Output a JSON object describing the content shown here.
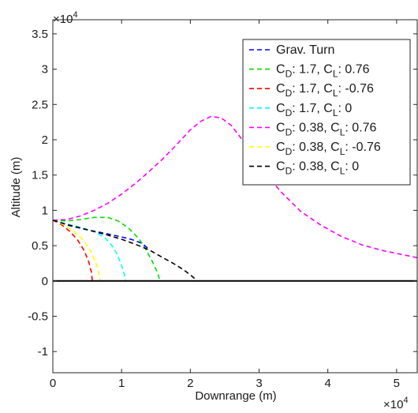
{
  "chart_data": {
    "type": "line",
    "xlabel": "Downrange (m)",
    "ylabel": "Altitude (m)",
    "x_scale_label": "×10",
    "x_scale_exp": "4",
    "y_scale_label": "×10",
    "y_scale_exp": "4",
    "xlim": [
      0,
      53000
    ],
    "ylim": [
      -13000,
      37000
    ],
    "x_ticks": [
      {
        "value": 0,
        "label": "0"
      },
      {
        "value": 10000,
        "label": "1"
      },
      {
        "value": 20000,
        "label": "2"
      },
      {
        "value": 30000,
        "label": "3"
      },
      {
        "value": 40000,
        "label": "4"
      },
      {
        "value": 50000,
        "label": "5"
      }
    ],
    "y_ticks": [
      {
        "value": -10000,
        "label": "-1"
      },
      {
        "value": -5000,
        "label": "-0.5"
      },
      {
        "value": 0,
        "label": "0"
      },
      {
        "value": 5000,
        "label": "0.5"
      },
      {
        "value": 10000,
        "label": "1"
      },
      {
        "value": 15000,
        "label": "1.5"
      },
      {
        "value": 20000,
        "label": "2"
      },
      {
        "value": 25000,
        "label": "2.5"
      },
      {
        "value": 30000,
        "label": "3"
      },
      {
        "value": 35000,
        "label": "3.5"
      }
    ],
    "grid": false,
    "legend_position": "top-right",
    "zero_line": true,
    "series": [
      {
        "name": "Grav. Turn",
        "legend": {
          "pre": "Grav. Turn",
          "sub1": "",
          "mid": "",
          "sub2": "",
          "post": ""
        },
        "color": "#0000ff",
        "x": [
          0,
          1000,
          2000,
          3000,
          5000,
          7000,
          9000,
          11000,
          12000,
          13000,
          14000
        ],
        "y": [
          8600,
          8300,
          7950,
          7700,
          7250,
          6850,
          6450,
          6000,
          5700,
          5300,
          4500
        ]
      },
      {
        "name": "CD: 1.7, CL: 0.76",
        "legend": {
          "pre": "C",
          "sub1": "D",
          "mid": ": 1.7, C",
          "sub2": "L",
          "post": ": 0.76"
        },
        "color": "#00dd00",
        "x": [
          0,
          2000,
          4000,
          6000,
          8000,
          9500,
          11000,
          12500,
          13500,
          14500,
          15200,
          15600
        ],
        "y": [
          8600,
          8500,
          8700,
          9000,
          9000,
          8500,
          7500,
          6000,
          4500,
          2700,
          1200,
          0
        ]
      },
      {
        "name": "CD: 1.7, CL: -0.76",
        "legend": {
          "pre": "C",
          "sub1": "D",
          "mid": ": 1.7, C",
          "sub2": "L",
          "post": ": -0.76"
        },
        "color": "#ff0000",
        "x": [
          0,
          1200,
          2500,
          3600,
          4500,
          5200,
          5600,
          5750
        ],
        "y": [
          8600,
          8000,
          7000,
          5800,
          4400,
          2800,
          1300,
          0
        ]
      },
      {
        "name": "CD: 1.7, CL: 0",
        "legend": {
          "pre": "C",
          "sub1": "D",
          "mid": ": 1.7, C",
          "sub2": "L",
          "post": ": 0"
        },
        "color": "#00ffff",
        "x": [
          0,
          2000,
          4000,
          6000,
          7500,
          8600,
          9400,
          10000,
          10400,
          10600
        ],
        "y": [
          8600,
          8100,
          7600,
          7000,
          6200,
          5000,
          3700,
          2200,
          900,
          0
        ]
      },
      {
        "name": "CD: 0.38, CL: 0.76",
        "legend": {
          "pre": "C",
          "sub1": "D",
          "mid": ": 0.38, C",
          "sub2": "L",
          "post": ": 0.76"
        },
        "color": "#ff00ff",
        "x": [
          0,
          2000,
          4000,
          6000,
          8000,
          10000,
          12000,
          14000,
          16000,
          18000,
          20000,
          21500,
          23000,
          24500,
          26000,
          28000,
          30000,
          33000,
          36000,
          39000,
          42000,
          45000,
          48000,
          50000,
          53000
        ],
        "y": [
          8600,
          8700,
          9200,
          10000,
          11000,
          12300,
          13800,
          15500,
          17300,
          19300,
          21400,
          22600,
          23300,
          23100,
          22000,
          19400,
          16500,
          12800,
          9900,
          7900,
          6300,
          5100,
          4300,
          3900,
          3300
        ]
      },
      {
        "name": "CD: 0.38, CL: -0.76",
        "legend": {
          "pre": "C",
          "sub1": "D",
          "mid": ": 0.38, C",
          "sub2": "L",
          "post": ": -0.76"
        },
        "color": "#ffff00",
        "x": [
          0,
          1500,
          3000,
          4200,
          5300,
          6100,
          6600,
          6800,
          6900
        ],
        "y": [
          8600,
          8000,
          7100,
          6000,
          4600,
          3000,
          1600,
          600,
          0
        ]
      },
      {
        "name": "CD: 0.38, CL: 0",
        "legend": {
          "pre": "C",
          "sub1": "D",
          "mid": ": 0.38, C",
          "sub2": "L",
          "post": ": 0"
        },
        "color": "#000000",
        "x": [
          0,
          2000,
          4000,
          6000,
          8000,
          10000,
          12000,
          14000,
          16000,
          17500,
          19000,
          20200,
          21000
        ],
        "y": [
          8600,
          8000,
          7500,
          7000,
          6500,
          5900,
          5200,
          4400,
          3300,
          2500,
          1600,
          700,
          0
        ]
      }
    ]
  }
}
